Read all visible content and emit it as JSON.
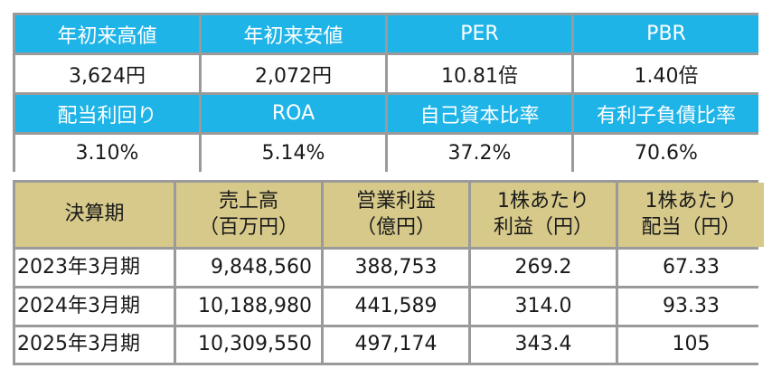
{
  "indicators": [
    {
      "label": "年初来高値",
      "value": "3,624円"
    },
    {
      "label": "年初来安値",
      "value": "2,072円"
    },
    {
      "label": "PER",
      "value": "10.81倍"
    },
    {
      "label": "PBR",
      "value": "1.40倍"
    },
    {
      "label": "配当利回り",
      "value": "3.10%"
    },
    {
      "label": "ROA",
      "value": "5.14%"
    },
    {
      "label": "自己資本比率",
      "value": "37.2%"
    },
    {
      "label": "有利子負債比率",
      "value": "70.6%"
    }
  ],
  "colors": {
    "indicator_header": "#1fb4e8",
    "results_header": "#d6c98a",
    "border": "#9a9a9a"
  },
  "results": {
    "headers": [
      {
        "line1": "決算期",
        "line2": ""
      },
      {
        "line1": "売上高",
        "line2": "（百万円）"
      },
      {
        "line1": "営業利益",
        "line2": "（億円）"
      },
      {
        "line1": "1株あたり",
        "line2": "利益（円）"
      },
      {
        "line1": "1株あたり",
        "line2": "配当（円）"
      }
    ],
    "rows": [
      {
        "period": "2023年3月期",
        "sales": "9,848,560",
        "op_profit": "388,753",
        "eps": "269.2",
        "dps": "67.33"
      },
      {
        "period": "2024年3月期",
        "sales": "10,188,980",
        "op_profit": "441,589",
        "eps": "314.0",
        "dps": "93.33"
      },
      {
        "period": "2025年3月期",
        "sales": "10,309,550",
        "op_profit": "497,174",
        "eps": "343.4",
        "dps": "105"
      }
    ]
  }
}
